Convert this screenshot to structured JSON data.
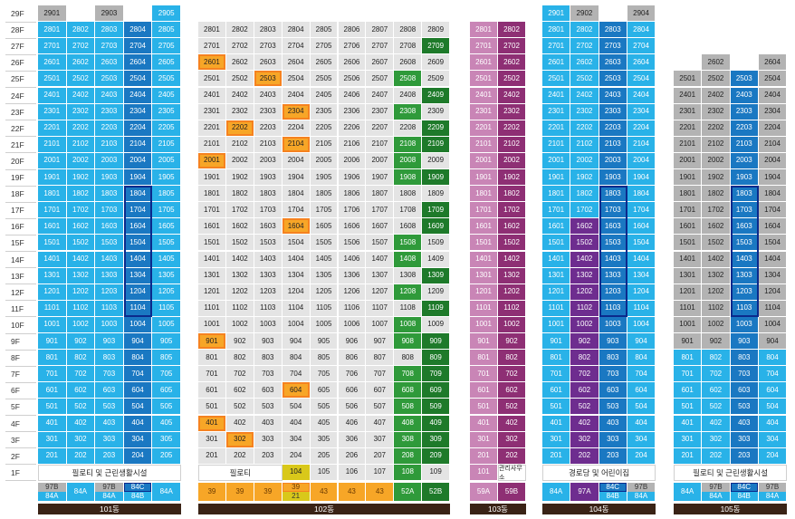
{
  "colors": {
    "blue": "#29b2e8",
    "dark_blue": "#1a78c2",
    "gray_dark": "#b3b3b3",
    "gray_light": "#e4e4e4",
    "green": "#2f9a3a",
    "green_dark": "#1e7a2a",
    "orange": "#f7a627",
    "pink": "#c985b6",
    "pink_dark": "#8e2f74",
    "purple": "#6e2d8f",
    "yellow": "#d9c81a",
    "outline": "#f58220",
    "stack_outline": "#0b2a8c",
    "label_bg": "#3a2316"
  },
  "floors": [
    "29F",
    "28F",
    "27F",
    "26F",
    "25F",
    "24F",
    "23F",
    "22F",
    "21F",
    "20F",
    "19F",
    "18F",
    "17F",
    "16F",
    "15F",
    "14F",
    "13F",
    "12F",
    "11F",
    "10F",
    "9F",
    "8F",
    "7F",
    "6F",
    "5F",
    "4F",
    "3F",
    "2F",
    "1F"
  ],
  "buildings": [
    {
      "label": "101동",
      "ground_text": "필로티 및 근린생활시설",
      "top_floor_units": [
        "2901",
        "",
        "2903",
        "",
        "2905"
      ],
      "types": [
        {
          "top": "97B",
          "bottom": "84A"
        },
        {
          "single": "84A"
        },
        {
          "top": "97B",
          "bottom": "84A"
        },
        {
          "top": "84C",
          "bottom": "84B"
        },
        {
          "single": "84A"
        }
      ]
    },
    {
      "label": "102동",
      "ground_text": "필로티",
      "ground_units": [
        "104",
        "105",
        "106",
        "107",
        "108",
        "109"
      ],
      "types": [
        {
          "single": "39"
        },
        {
          "single": "39"
        },
        {
          "single": "39"
        },
        {
          "top": "39",
          "bottom": "21"
        },
        {
          "single": "43"
        },
        {
          "single": "43"
        },
        {
          "single": "43"
        },
        {
          "single": "52A"
        },
        {
          "single": "52B"
        }
      ]
    },
    {
      "label": "103동",
      "ground_units": [
        "101"
      ],
      "ground_text": "관리사무소",
      "types": [
        {
          "single": "59A"
        },
        {
          "single": "59B"
        }
      ]
    },
    {
      "label": "104동",
      "ground_text": "경로당 및 어린이집",
      "top_floor_units": [
        "2901",
        "2902",
        "",
        "2904"
      ],
      "types": [
        {
          "single": "84A"
        },
        {
          "single": "97A"
        },
        {
          "top": "84C",
          "bottom": "84B"
        },
        {
          "top": "97B",
          "bottom": "84A"
        }
      ]
    },
    {
      "label": "105동",
      "ground_text": "필로티 및 근린생활시설",
      "top_floor_units": [
        "",
        "2602",
        "",
        "2604"
      ],
      "types": [
        {
          "single": "84A"
        },
        {
          "top": "97B",
          "bottom": "84A"
        },
        {
          "top": "84C",
          "bottom": "84B"
        },
        {
          "top": "97B",
          "bottom": "84A"
        }
      ]
    }
  ],
  "building_units_note": "unit numbers shown are floor number + line number (e.g. 1203)"
}
